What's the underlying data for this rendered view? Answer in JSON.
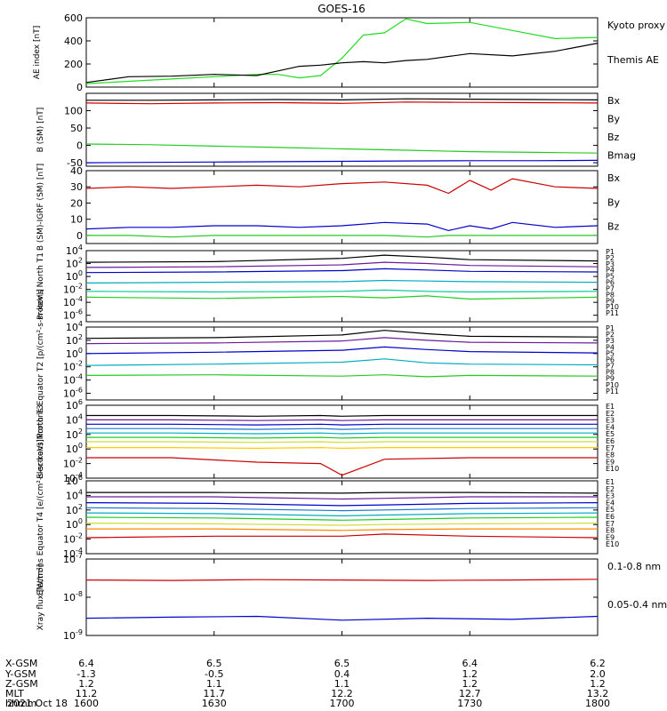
{
  "title": "GOES-16",
  "date_label": "2021 Oct 18",
  "footer": {
    "row_labels": [
      "X-GSM",
      "Y-GSM",
      "Z-GSM",
      "MLT",
      "hhmm"
    ],
    "columns": [
      {
        "x_pos": "6.4",
        "y_pos": "-1.3",
        "z_pos": "1.2",
        "mlt": "11.2",
        "hhmm": "1600"
      },
      {
        "x_pos": "6.5",
        "y_pos": "-0.5",
        "z_pos": "1.1",
        "mlt": "11.7",
        "hhmm": "1630"
      },
      {
        "x_pos": "6.5",
        "y_pos": "0.4",
        "z_pos": "1.1",
        "mlt": "12.2",
        "hhmm": "1700"
      },
      {
        "x_pos": "6.4",
        "y_pos": "1.2",
        "z_pos": "1.2",
        "mlt": "12.7",
        "hhmm": "1730"
      },
      {
        "x_pos": "6.2",
        "y_pos": "2.0",
        "z_pos": "1.2",
        "mlt": "13.2",
        "hhmm": "1800"
      }
    ]
  },
  "chart_data": [
    {
      "type": "line",
      "ylabel": "AE index [nT]",
      "ylim": [
        0,
        600
      ],
      "yticks": [
        0,
        200,
        400,
        600
      ],
      "ytick_labels": [
        "0",
        "200",
        "400",
        "600"
      ],
      "scale": "linear",
      "legend": [
        "Kyoto proxy AE",
        "Themis AE"
      ],
      "legend_colors": [
        "#22dd22",
        "#000000"
      ],
      "x": [
        0,
        10,
        20,
        30,
        40,
        45,
        50,
        55,
        60,
        65,
        70,
        75,
        80,
        90,
        100,
        110,
        120
      ],
      "series": [
        {
          "name": "Kyoto proxy AE",
          "color": "#22dd22",
          "values": [
            30,
            50,
            70,
            90,
            110,
            110,
            80,
            100,
            250,
            450,
            470,
            590,
            550,
            560,
            490,
            420,
            430
          ]
        },
        {
          "name": "Themis AE",
          "color": "#000000",
          "values": [
            40,
            90,
            95,
            110,
            100,
            140,
            180,
            190,
            210,
            220,
            210,
            230,
            240,
            290,
            270,
            310,
            380
          ]
        }
      ]
    },
    {
      "type": "line",
      "ylabel": "B (SM) [nT]",
      "ylim": [
        -60,
        150
      ],
      "yticks": [
        -50,
        0,
        50,
        100
      ],
      "ytick_labels": [
        "-50",
        "0",
        "50",
        "100"
      ],
      "scale": "linear",
      "legend": [
        "Bx",
        "By",
        "Bz",
        "Bmag"
      ],
      "legend_colors": [
        "#0000cc",
        "#22cc22",
        "#cc0000",
        "#000000"
      ],
      "x": [
        0,
        15,
        30,
        45,
        60,
        75,
        90,
        105,
        120
      ],
      "series": [
        {
          "name": "Bx",
          "color": "#0000cc",
          "values": [
            -50,
            -49,
            -48,
            -47,
            -46,
            -45,
            -44,
            -44,
            -43
          ]
        },
        {
          "name": "By",
          "color": "#22cc22",
          "values": [
            4,
            2,
            -2,
            -6,
            -10,
            -14,
            -18,
            -20,
            -22
          ]
        },
        {
          "name": "Bz",
          "color": "#cc0000",
          "values": [
            122,
            120,
            122,
            123,
            121,
            125,
            124,
            123,
            122
          ]
        },
        {
          "name": "Bmag",
          "color": "#000000",
          "values": [
            130,
            130,
            131,
            132,
            131,
            134,
            133,
            132,
            131
          ]
        }
      ]
    },
    {
      "type": "line",
      "ylabel": "B (SM)-IGRF (SM) [nT]",
      "ylim": [
        -5,
        40
      ],
      "yticks": [
        0,
        10,
        20,
        30,
        40
      ],
      "ytick_labels": [
        "0",
        "10",
        "20",
        "30",
        "40"
      ],
      "scale": "linear",
      "legend": [
        "Bx",
        "By",
        "Bz"
      ],
      "legend_colors": [
        "#0000cc",
        "#22cc22",
        "#cc0000"
      ],
      "x": [
        0,
        10,
        20,
        30,
        40,
        50,
        60,
        70,
        80,
        85,
        90,
        95,
        100,
        110,
        120
      ],
      "series": [
        {
          "name": "Bx",
          "color": "#0000cc",
          "values": [
            4,
            5,
            5,
            6,
            6,
            5,
            6,
            8,
            7,
            3,
            6,
            4,
            8,
            5,
            6
          ]
        },
        {
          "name": "By",
          "color": "#22cc22",
          "values": [
            0,
            0,
            -1,
            0,
            0,
            0,
            0,
            0,
            -1,
            0,
            0,
            0,
            0,
            0,
            0
          ]
        },
        {
          "name": "Bz",
          "color": "#cc0000",
          "values": [
            29,
            30,
            29,
            30,
            31,
            30,
            32,
            33,
            31,
            26,
            34,
            28,
            35,
            30,
            29
          ]
        }
      ]
    },
    {
      "type": "line",
      "ylabel": "Protons North T1",
      "scale": "log",
      "ylim_exp": [
        -7,
        4
      ],
      "yticks_exp": [
        -6,
        -4,
        -2,
        0,
        2,
        4
      ],
      "ytick_labels": [
        "10^-6",
        "10^-4",
        "10^-2",
        "10^0",
        "10^2",
        "10^4"
      ],
      "legend": [
        "P1",
        "P2",
        "P3",
        "P4",
        "P5",
        "P6",
        "P7",
        "P8",
        "P9",
        "P10",
        "P11"
      ],
      "legend_colors": [
        "#000000",
        "#6a1b9a",
        "#0000cc",
        "#1976d2",
        "#00acc1",
        "#00cc99",
        "#cddc39",
        "#ffcc00",
        "#ff8800",
        "#ee3311",
        "#cc0000"
      ],
      "x": [
        0,
        30,
        60,
        70,
        80,
        90,
        120
      ],
      "series": [
        {
          "name": "P1",
          "color": "#000000",
          "values_exp": [
            2.2,
            2.3,
            2.8,
            3.3,
            3.0,
            2.6,
            2.4
          ]
        },
        {
          "name": "P2",
          "color": "#6a1b9a",
          "values_exp": [
            1.4,
            1.5,
            1.8,
            2.2,
            2.0,
            1.7,
            1.5
          ]
        },
        {
          "name": "P3",
          "color": "#0000cc",
          "values_exp": [
            0.6,
            0.7,
            0.9,
            1.2,
            1.0,
            0.8,
            0.7
          ]
        },
        {
          "name": "P5",
          "color": "#00acc1",
          "values_exp": [
            -1.0,
            -0.9,
            -0.8,
            -0.6,
            -0.7,
            -0.8,
            -0.9
          ]
        },
        {
          "name": "P6",
          "color": "#00cc99",
          "values_exp": [
            -2.3,
            -2.4,
            -2.3,
            -2.1,
            -2.3,
            -2.4,
            -2.3
          ]
        },
        {
          "name": "P7",
          "color": "#22cc22",
          "values_exp": [
            -3.2,
            -3.4,
            -3.1,
            -3.3,
            -3.0,
            -3.5,
            -3.2
          ]
        }
      ]
    },
    {
      "type": "line",
      "ylabel": "Protons Equator T2 [p/(cm²-s-sr-keV)]",
      "scale": "log",
      "ylim_exp": [
        -7,
        4
      ],
      "yticks_exp": [
        -6,
        -4,
        -2,
        0,
        2,
        4
      ],
      "ytick_labels": [
        "10^-6",
        "10^-4",
        "10^-2",
        "10^0",
        "10^2",
        "10^4"
      ],
      "legend": [
        "P1",
        "P2",
        "P3",
        "P4",
        "P5",
        "P6",
        "P7",
        "P8",
        "P9",
        "P10",
        "P11"
      ],
      "legend_colors": [
        "#000000",
        "#6a1b9a",
        "#0000cc",
        "#1976d2",
        "#00acc1",
        "#00cc99",
        "#cddc39",
        "#ffcc00",
        "#ff8800",
        "#ee3311",
        "#cc0000"
      ],
      "x": [
        0,
        30,
        60,
        70,
        80,
        90,
        120
      ],
      "series": [
        {
          "name": "P1",
          "color": "#000000",
          "values_exp": [
            2.3,
            2.4,
            2.8,
            3.5,
            3.0,
            2.6,
            2.5
          ]
        },
        {
          "name": "P2",
          "color": "#6a1b9a",
          "values_exp": [
            1.5,
            1.6,
            1.9,
            2.4,
            2.0,
            1.7,
            1.6
          ]
        },
        {
          "name": "P3",
          "color": "#0000cc",
          "values_exp": [
            0.0,
            0.2,
            0.5,
            1.0,
            0.6,
            0.3,
            0.1
          ]
        },
        {
          "name": "P5",
          "color": "#00acc1",
          "values_exp": [
            -1.8,
            -1.6,
            -1.3,
            -0.8,
            -1.4,
            -1.6,
            -1.7
          ]
        },
        {
          "name": "P6",
          "color": "#22cc22",
          "values_exp": [
            -3.3,
            -3.2,
            -3.4,
            -3.2,
            -3.5,
            -3.3,
            -3.4
          ]
        }
      ]
    },
    {
      "type": "line",
      "ylabel": "Electrons North T3",
      "scale": "log",
      "ylim_exp": [
        -4,
        6
      ],
      "yticks_exp": [
        -4,
        -2,
        0,
        2,
        4,
        6
      ],
      "ytick_labels": [
        "10^-4",
        "10^-2",
        "10^0",
        "10^2",
        "10^4",
        "10^6"
      ],
      "legend": [
        "E1",
        "E2",
        "E3",
        "E4",
        "E5",
        "E6",
        "E7",
        "E8",
        "E9",
        "E10"
      ],
      "legend_colors": [
        "#000000",
        "#6a1b9a",
        "#0000cc",
        "#1976d2",
        "#00acc1",
        "#22cc22",
        "#cddc39",
        "#ffcc00",
        "#ff8800",
        "#cc0000"
      ],
      "x": [
        0,
        20,
        40,
        55,
        60,
        70,
        90,
        120
      ],
      "series": [
        {
          "name": "E1",
          "color": "#000000",
          "values_exp": [
            4.6,
            4.6,
            4.5,
            4.6,
            4.5,
            4.6,
            4.6,
            4.6
          ]
        },
        {
          "name": "E2",
          "color": "#6a1b9a",
          "values_exp": [
            4.0,
            4.0,
            3.9,
            4.0,
            3.9,
            4.0,
            4.0,
            4.0
          ]
        },
        {
          "name": "E3",
          "color": "#0000cc",
          "values_exp": [
            3.4,
            3.4,
            3.3,
            3.4,
            3.3,
            3.4,
            3.4,
            3.4
          ]
        },
        {
          "name": "E4",
          "color": "#1976d2",
          "values_exp": [
            2.8,
            2.8,
            2.7,
            2.8,
            2.7,
            2.8,
            2.8,
            2.8
          ]
        },
        {
          "name": "E5",
          "color": "#00acc1",
          "values_exp": [
            2.2,
            2.2,
            2.1,
            2.2,
            2.1,
            2.2,
            2.2,
            2.2
          ]
        },
        {
          "name": "E6",
          "color": "#22cc22",
          "values_exp": [
            1.6,
            1.6,
            1.5,
            1.6,
            1.5,
            1.6,
            1.6,
            1.6
          ]
        },
        {
          "name": "E7",
          "color": "#cddc39",
          "values_exp": [
            1.0,
            1.0,
            0.9,
            1.0,
            0.9,
            1.0,
            1.0,
            1.0
          ]
        },
        {
          "name": "E8",
          "color": "#ffcc00",
          "values_exp": [
            0.2,
            0.2,
            0.1,
            0.2,
            0.1,
            0.2,
            0.2,
            0.2
          ]
        },
        {
          "name": "E10",
          "color": "#cc0000",
          "values_exp": [
            -1.2,
            -1.2,
            -1.8,
            -2.0,
            -3.6,
            -1.4,
            -1.2,
            -1.2
          ]
        }
      ]
    },
    {
      "type": "line",
      "ylabel": "Electrons Equator T4 [e/(cm²-s-sr-keV)]",
      "scale": "log",
      "ylim_exp": [
        -4,
        6
      ],
      "yticks_exp": [
        -4,
        -2,
        0,
        2,
        4,
        6
      ],
      "ytick_labels": [
        "10^-4",
        "10^-2",
        "10^0",
        "10^2",
        "10^4",
        "10^6"
      ],
      "legend": [
        "E1",
        "E2",
        "E3",
        "E4",
        "E5",
        "E6",
        "E7",
        "E8",
        "E9",
        "E10"
      ],
      "legend_colors": [
        "#000000",
        "#6a1b9a",
        "#0000cc",
        "#1976d2",
        "#00acc1",
        "#22cc22",
        "#cddc39",
        "#ffcc00",
        "#ff8800",
        "#cc0000"
      ],
      "x": [
        0,
        30,
        60,
        70,
        90,
        120
      ],
      "series": [
        {
          "name": "E1",
          "color": "#000000",
          "values_exp": [
            4.4,
            4.4,
            4.3,
            4.4,
            4.4,
            4.3
          ]
        },
        {
          "name": "E2",
          "color": "#6a1b9a",
          "values_exp": [
            3.8,
            3.8,
            3.5,
            3.6,
            3.8,
            3.8
          ]
        },
        {
          "name": "E3",
          "color": "#0000cc",
          "values_exp": [
            3.0,
            2.9,
            2.6,
            2.7,
            2.9,
            3.0
          ]
        },
        {
          "name": "E4",
          "color": "#1976d2",
          "values_exp": [
            2.3,
            2.2,
            1.9,
            2.0,
            2.2,
            2.3
          ]
        },
        {
          "name": "E5",
          "color": "#00acc1",
          "values_exp": [
            1.6,
            1.5,
            1.2,
            1.3,
            1.5,
            1.6
          ]
        },
        {
          "name": "E6",
          "color": "#22cc22",
          "values_exp": [
            1.0,
            0.9,
            0.6,
            0.7,
            0.9,
            1.0
          ]
        },
        {
          "name": "E7",
          "color": "#cddc39",
          "values_exp": [
            0.2,
            0.1,
            -0.1,
            0.0,
            0.1,
            0.2
          ]
        },
        {
          "name": "E8",
          "color": "#ff8800",
          "values_exp": [
            -0.6,
            -0.6,
            -0.8,
            -0.7,
            -0.6,
            -0.6
          ]
        },
        {
          "name": "E10",
          "color": "#cc0000",
          "values_exp": [
            -1.8,
            -1.6,
            -1.6,
            -1.3,
            -1.6,
            -1.8
          ]
        }
      ]
    },
    {
      "type": "line",
      "ylabel": "Xray flux [W/m²]",
      "scale": "log",
      "ylim_exp": [
        -9,
        -7
      ],
      "yticks_exp": [
        -9,
        -8,
        -7
      ],
      "ytick_labels": [
        "10^-9",
        "10^-8",
        "10^-7"
      ],
      "legend": [
        "0.1-0.8 nm",
        "0.05-0.4 nm"
      ],
      "legend_colors": [
        "#cc0000",
        "#0000cc"
      ],
      "x": [
        0,
        20,
        40,
        60,
        80,
        100,
        120
      ],
      "series": [
        {
          "name": "0.1-0.8 nm",
          "color": "#cc0000",
          "values_exp": [
            -7.55,
            -7.56,
            -7.54,
            -7.55,
            -7.56,
            -7.55,
            -7.53
          ]
        },
        {
          "name": "0.05-0.4 nm",
          "color": "#0000cc",
          "values_exp": [
            -8.55,
            -8.52,
            -8.5,
            -8.6,
            -8.55,
            -8.58,
            -8.5
          ]
        }
      ]
    }
  ]
}
